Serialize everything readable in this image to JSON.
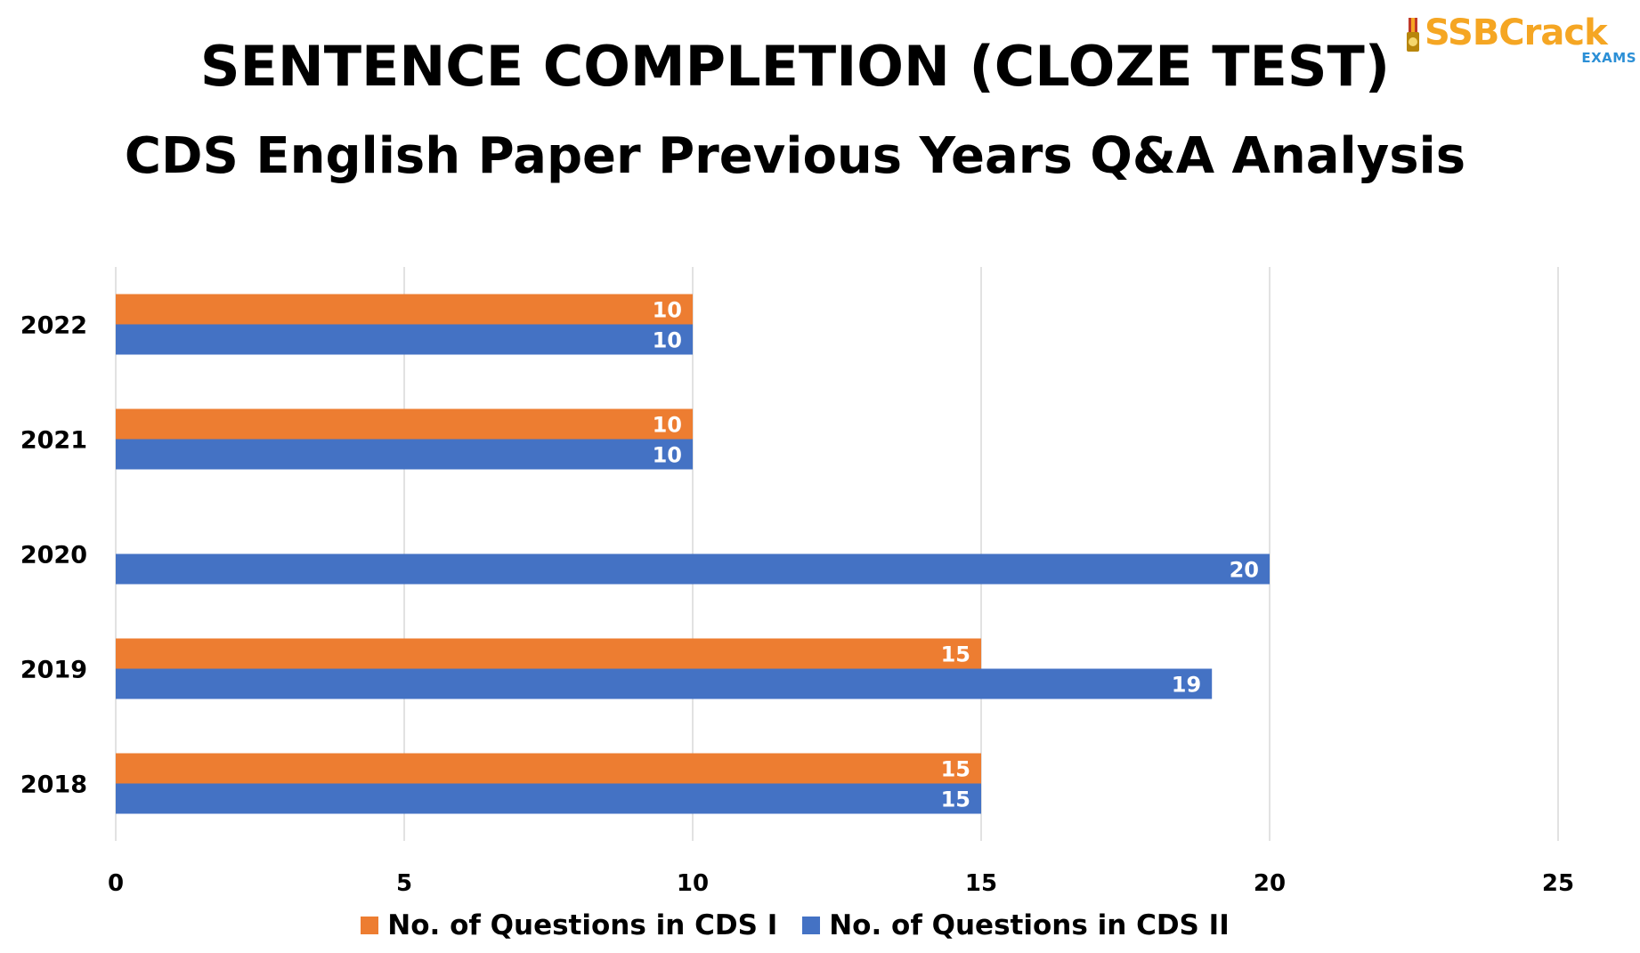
{
  "header": {
    "title": "SENTENCE COMPLETION (CLOZE TEST)",
    "subtitle": "CDS English Paper Previous Years Q&A Analysis"
  },
  "logo": {
    "text": "SSBCrack",
    "subtext": "EXAMS",
    "color": "#f5a623",
    "subcolor": "#2b8fd6"
  },
  "chart_data": {
    "type": "bar",
    "orientation": "horizontal",
    "categories": [
      "2022",
      "2021",
      "2020",
      "2019",
      "2018"
    ],
    "series": [
      {
        "name": "No. of Questions in CDS I",
        "color": "#ed7d31",
        "values": [
          10,
          10,
          null,
          15,
          15
        ]
      },
      {
        "name": "No. of Questions in CDS II",
        "color": "#4472c4",
        "values": [
          10,
          10,
          20,
          19,
          15
        ]
      }
    ],
    "xlim": [
      0,
      25
    ],
    "xticks": [
      0,
      5,
      10,
      15,
      20,
      25
    ],
    "grid": true,
    "legend_position": "bottom",
    "data_labels": true
  }
}
